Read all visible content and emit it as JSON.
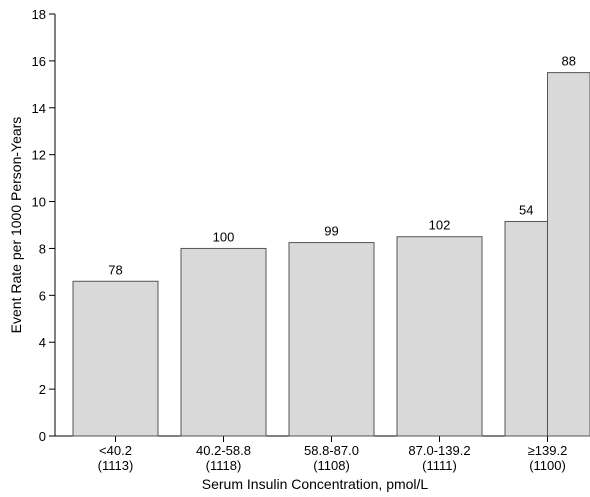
{
  "chart_data": {
    "type": "bar",
    "title": "",
    "xlabel": "Serum Insulin Concentration, pmol/L",
    "ylabel": "Event Rate per 1000 Person-Years",
    "ylim": [
      0,
      18
    ],
    "yticks": [
      0,
      2,
      4,
      6,
      8,
      10,
      12,
      14,
      16,
      18
    ],
    "categories": [
      {
        "label": "<40.2",
        "n": "(1113)"
      },
      {
        "label": "40.2-58.8",
        "n": "(1118)"
      },
      {
        "label": "58.8-87.0",
        "n": "(1108)"
      },
      {
        "label": "87.0-139.2",
        "n": "(1111)"
      },
      {
        "label": "≥139.2",
        "n": "(1100)"
      }
    ],
    "bars": [
      {
        "category": 0,
        "value": 6.6,
        "label": "78"
      },
      {
        "category": 1,
        "value": 8.0,
        "label": "100"
      },
      {
        "category": 2,
        "value": 8.25,
        "label": "99"
      },
      {
        "category": 3,
        "value": 8.5,
        "label": "102"
      },
      {
        "category": 4,
        "sub": 0,
        "value": 9.15,
        "label": "54"
      },
      {
        "category": 4,
        "sub": 1,
        "value": 15.5,
        "label": "88"
      }
    ],
    "colors": {
      "bar_fill": "#d9d9d9",
      "bar_stroke": "#555555"
    },
    "grid": false,
    "legend": "none"
  }
}
